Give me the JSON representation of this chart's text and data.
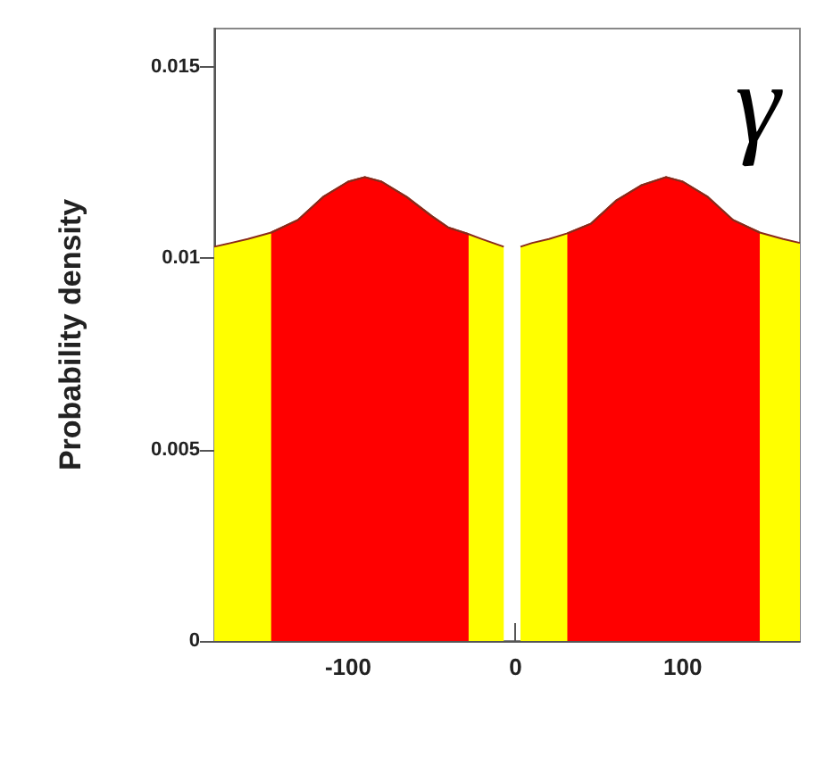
{
  "chart_data": {
    "type": "area",
    "ylabel": "Probability density",
    "annotations": [
      "γ"
    ],
    "xlim": [
      -180,
      170
    ],
    "xticks": [
      -100,
      0,
      100
    ],
    "ylim": [
      0,
      0.016
    ],
    "yticks": [
      0,
      0.005,
      0.01,
      0.015
    ],
    "grid": false,
    "series": [
      {
        "color": "#ffff00",
        "x": [
          -180,
          -170,
          -160,
          -146,
          -130,
          -115,
          -100,
          -90,
          -80,
          -65,
          -50,
          -40,
          -28,
          -20,
          -7,
          -2,
          3,
          10,
          20,
          31,
          45,
          60,
          75,
          90,
          100,
          115,
          130,
          146,
          160,
          170
        ],
        "values": [
          0.0103,
          0.0104,
          0.0105,
          0.01067,
          0.011,
          0.0116,
          0.012,
          0.01212,
          0.012,
          0.0116,
          0.0111,
          0.0108,
          0.01063,
          0.0105,
          0.0103,
          null,
          0.0103,
          0.0104,
          0.0105,
          0.01065,
          0.0109,
          0.0115,
          0.0119,
          0.01212,
          0.012,
          0.0116,
          0.011,
          0.01067,
          0.0105,
          0.0104
        ]
      },
      {
        "color": "#ff0000",
        "x": [
          -146,
          -130,
          -115,
          -100,
          -90,
          -80,
          -65,
          -50,
          -40,
          -28,
          0,
          31,
          45,
          60,
          75,
          90,
          100,
          115,
          130,
          146
        ],
        "values": [
          0.01067,
          0.011,
          0.0116,
          0.012,
          0.01212,
          0.012,
          0.0116,
          0.0111,
          0.0108,
          0.01063,
          null,
          0.01065,
          0.0109,
          0.0115,
          0.0119,
          0.01212,
          0.012,
          0.0116,
          0.011,
          0.01067
        ]
      }
    ]
  }
}
